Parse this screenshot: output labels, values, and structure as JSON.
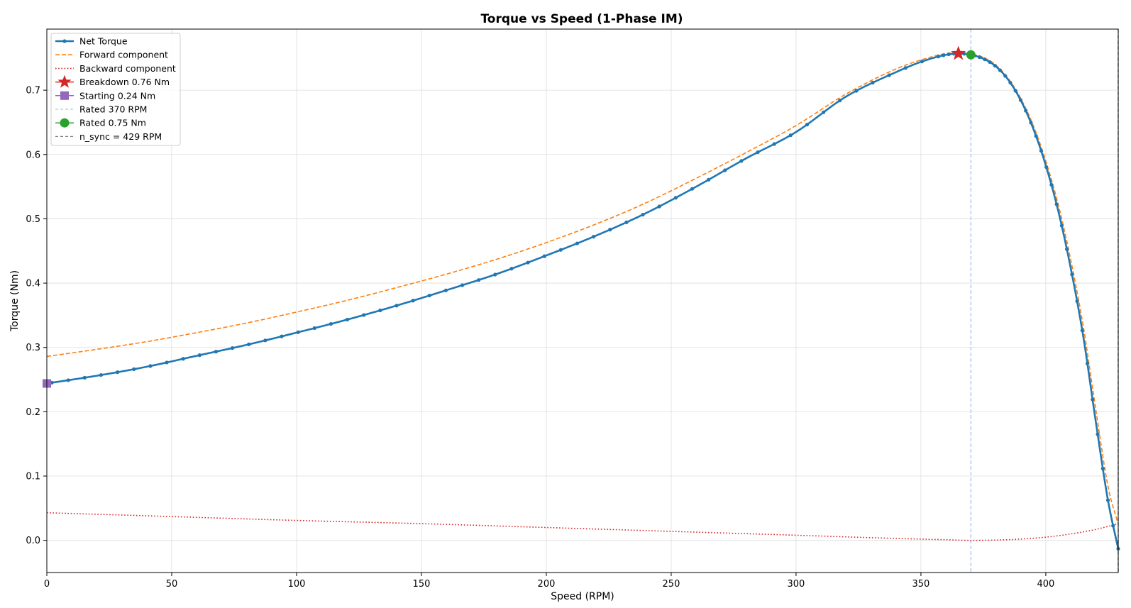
{
  "chart_data": {
    "type": "line",
    "title": "Torque vs Speed  (1-Phase IM)",
    "xlabel": "Speed (RPM)",
    "ylabel": "Torque (Nm)",
    "xlim": [
      0,
      429
    ],
    "ylim": [
      -0.05,
      0.795
    ],
    "xticks": [
      0,
      50,
      100,
      150,
      200,
      250,
      300,
      350,
      400
    ],
    "yticks": [
      0.0,
      0.1,
      0.2,
      0.3,
      0.4,
      0.5,
      0.6,
      0.7
    ],
    "grid": true,
    "legend_position": "top-left",
    "series": [
      {
        "name": "Net Torque",
        "color": "#1f77b4",
        "style": "solid-markers",
        "x": [
          0,
          20,
          40,
          60,
          80,
          100,
          120,
          140,
          160,
          180,
          200,
          220,
          240,
          260,
          280,
          300,
          320,
          340,
          350,
          360,
          365,
          370,
          375,
          380,
          385,
          390,
          395,
          400,
          405,
          410,
          415,
          420,
          425,
          429
        ],
        "y": [
          0.244,
          0.256,
          0.27,
          0.287,
          0.304,
          0.323,
          0.343,
          0.365,
          0.389,
          0.414,
          0.443,
          0.474,
          0.509,
          0.55,
          0.594,
          0.635,
          0.69,
          0.728,
          0.744,
          0.755,
          0.757,
          0.755,
          0.749,
          0.737,
          0.716,
          0.684,
          0.64,
          0.583,
          0.512,
          0.423,
          0.317,
          0.185,
          0.06,
          -0.013
        ]
      },
      {
        "name": "Forward component",
        "color": "#ff7f0e",
        "style": "dashed",
        "x": [
          0,
          20,
          40,
          60,
          80,
          100,
          120,
          140,
          160,
          180,
          200,
          220,
          240,
          260,
          280,
          300,
          320,
          340,
          350,
          360,
          365,
          370,
          375,
          380,
          385,
          390,
          395,
          400,
          405,
          410,
          415,
          420,
          425,
          429
        ],
        "y": [
          0.286,
          0.297,
          0.309,
          0.323,
          0.338,
          0.355,
          0.373,
          0.393,
          0.414,
          0.437,
          0.463,
          0.492,
          0.525,
          0.563,
          0.603,
          0.645,
          0.694,
          0.733,
          0.747,
          0.757,
          0.758,
          0.756,
          0.751,
          0.739,
          0.718,
          0.687,
          0.645,
          0.59,
          0.522,
          0.436,
          0.333,
          0.204,
          0.082,
          0.025
        ]
      },
      {
        "name": "Backward component",
        "color": "#d62728",
        "style": "dotted",
        "x": [
          0,
          50,
          100,
          150,
          200,
          250,
          300,
          340,
          360,
          370,
          380,
          390,
          400,
          410,
          420,
          429
        ],
        "y": [
          0.043,
          0.037,
          0.031,
          0.026,
          0.02,
          0.014,
          0.008,
          0.003,
          0.001,
          0.0,
          0.0005,
          0.002,
          0.005,
          0.01,
          0.017,
          0.026
        ]
      }
    ],
    "markers": [
      {
        "name": "Breakdown  0.76 Nm",
        "x": 365,
        "y": 0.757,
        "shape": "star",
        "color": "#d62728"
      },
      {
        "name": "Starting  0.24 Nm",
        "x": 0,
        "y": 0.244,
        "shape": "square",
        "color": "#9467bd"
      },
      {
        "name": "Rated  0.75 Nm",
        "x": 370,
        "y": 0.755,
        "shape": "circle",
        "color": "#2ca02c"
      }
    ],
    "vlines": [
      {
        "name": "Rated  370 RPM",
        "x": 370,
        "color": "#aec7e8",
        "style": "dashed"
      },
      {
        "name": "n_sync = 429 RPM",
        "x": 429,
        "color": "#7f7f7f",
        "style": "dashed"
      }
    ],
    "legend": [
      {
        "label": "Net Torque",
        "kind": "line-marker",
        "color": "#1f77b4"
      },
      {
        "label": "Forward component",
        "kind": "dashed",
        "color": "#ff7f0e"
      },
      {
        "label": "Backward component",
        "kind": "dotted",
        "color": "#d62728"
      },
      {
        "label": "Breakdown  0.76 Nm",
        "kind": "star",
        "color": "#d62728"
      },
      {
        "label": "Starting  0.24 Nm",
        "kind": "square",
        "color": "#9467bd"
      },
      {
        "label": "Rated  370 RPM",
        "kind": "dashed-thin",
        "color": "#aec7e8"
      },
      {
        "label": "Rated  0.75 Nm",
        "kind": "circle",
        "color": "#2ca02c"
      },
      {
        "label": "n_sync = 429 RPM",
        "kind": "dashed-thin",
        "color": "#7f7f7f"
      }
    ]
  }
}
